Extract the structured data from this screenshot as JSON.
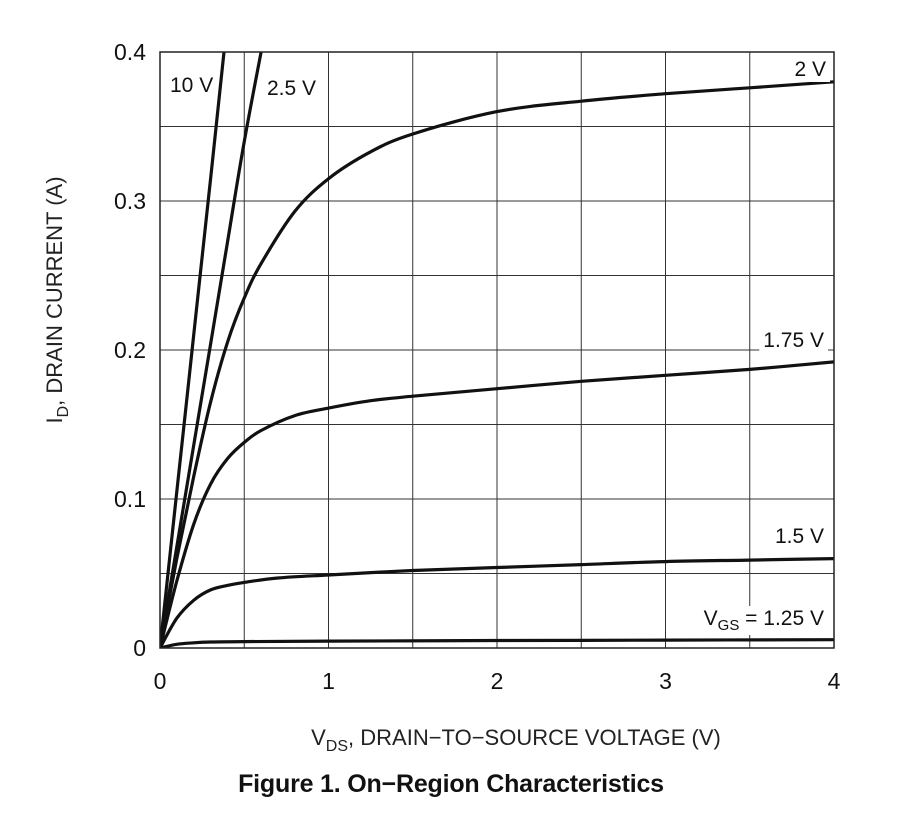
{
  "figure_caption": "Figure 1. On−Region Characteristics",
  "chart_data": {
    "type": "line",
    "title": "Figure 1. On−Region Characteristics",
    "xlabel": "VDS, DRAIN−TO−SOURCE VOLTAGE (V)",
    "xlabel_main": "V",
    "xlabel_sub": "DS",
    "xlabel_rest": ", DRAIN−TO−SOURCE VOLTAGE (V)",
    "ylabel": "ID, DRAIN CURRENT (A)",
    "ylabel_main": "I",
    "ylabel_sub": "D",
    "ylabel_rest": ", DRAIN CURRENT (A)",
    "xlim": [
      0,
      4
    ],
    "ylim": [
      0,
      0.4
    ],
    "x_ticks": [
      0,
      1,
      2,
      3,
      4
    ],
    "x_tick_labels": [
      "0",
      "1",
      "2",
      "3",
      "4"
    ],
    "y_ticks": [
      0,
      0.1,
      0.2,
      0.3,
      0.4
    ],
    "y_tick_labels": [
      "0",
      "0.1",
      "0.2",
      "0.3",
      "0.4"
    ],
    "x_minor_ticks": [
      0.5,
      1.5,
      2.5,
      3.5
    ],
    "y_minor_ticks": [
      0.05,
      0.15,
      0.25,
      0.35
    ],
    "grid": true,
    "series": [
      {
        "name": "10 V",
        "label": "10 V",
        "x": [
          0,
          0.1,
          0.2,
          0.3,
          0.38
        ],
        "y": [
          0,
          0.105,
          0.21,
          0.315,
          0.4
        ]
      },
      {
        "name": "2.5 V",
        "label": "2.5 V",
        "x": [
          0,
          0.1,
          0.2,
          0.3,
          0.4,
          0.5,
          0.6
        ],
        "y": [
          0,
          0.068,
          0.136,
          0.204,
          0.272,
          0.34,
          0.4
        ]
      },
      {
        "name": "2 V",
        "label": "2 V",
        "x": [
          0,
          0.1,
          0.2,
          0.3,
          0.4,
          0.5,
          0.6,
          0.8,
          1.0,
          1.25,
          1.5,
          2.0,
          2.5,
          3.0,
          3.5,
          4.0
        ],
        "y": [
          0,
          0.06,
          0.115,
          0.165,
          0.205,
          0.235,
          0.258,
          0.293,
          0.315,
          0.333,
          0.345,
          0.36,
          0.367,
          0.372,
          0.376,
          0.38
        ]
      },
      {
        "name": "1.75 V",
        "label": "1.75 V",
        "x": [
          0,
          0.1,
          0.2,
          0.3,
          0.4,
          0.5,
          0.6,
          0.8,
          1.0,
          1.25,
          1.5,
          2.0,
          2.5,
          3.0,
          3.5,
          4.0
        ],
        "y": [
          0,
          0.045,
          0.083,
          0.11,
          0.127,
          0.138,
          0.146,
          0.156,
          0.161,
          0.166,
          0.169,
          0.174,
          0.179,
          0.183,
          0.187,
          0.192
        ]
      },
      {
        "name": "1.5 V",
        "label": "1.5 V",
        "x": [
          0,
          0.1,
          0.2,
          0.3,
          0.4,
          0.5,
          0.7,
          1.0,
          1.5,
          2.0,
          2.5,
          3.0,
          3.5,
          4.0
        ],
        "y": [
          0,
          0.02,
          0.032,
          0.039,
          0.042,
          0.044,
          0.047,
          0.049,
          0.052,
          0.054,
          0.056,
          0.058,
          0.059,
          0.06
        ]
      },
      {
        "name": "VGS = 1.25 V",
        "label": "= 1.25 V",
        "label_main": "V",
        "label_sub": "GS",
        "x": [
          0,
          0.1,
          0.2,
          0.3,
          0.5,
          1.0,
          2.0,
          3.0,
          4.0
        ],
        "y": [
          0,
          0.0025,
          0.0035,
          0.004,
          0.0043,
          0.0046,
          0.005,
          0.0053,
          0.0056
        ]
      }
    ]
  }
}
